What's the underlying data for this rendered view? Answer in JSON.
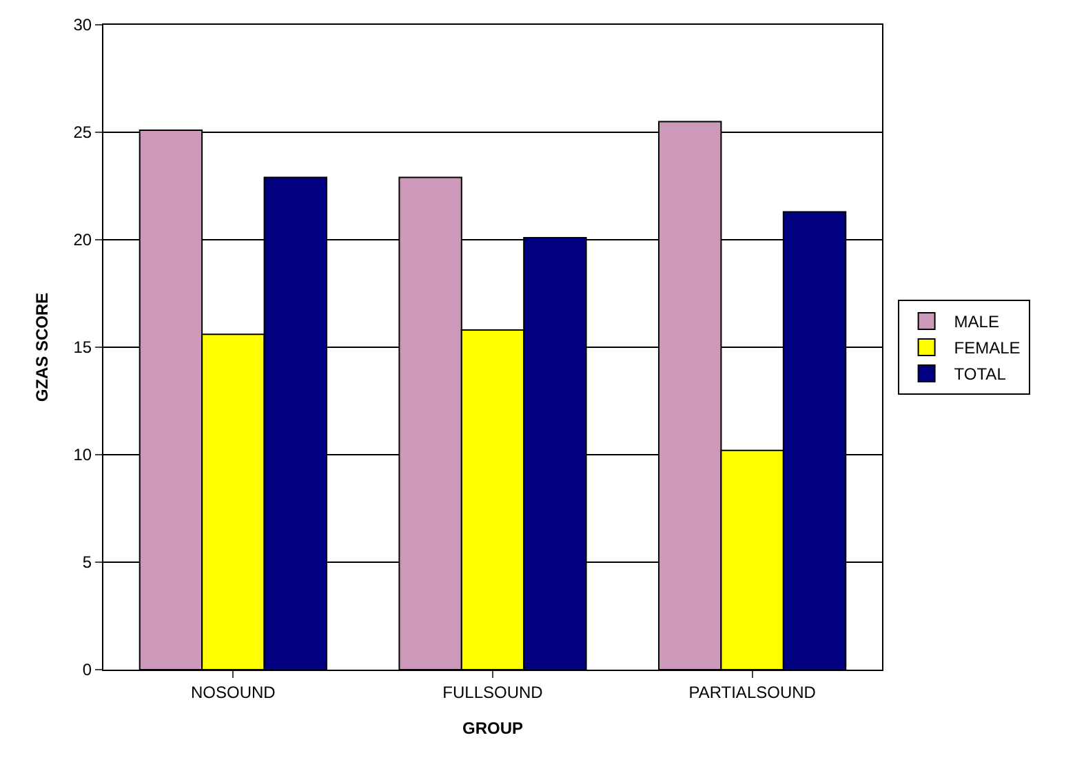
{
  "chart_data": {
    "type": "bar",
    "xlabel": "GROUP",
    "ylabel": "GZAS SCORE",
    "categories": [
      "NOSOUND",
      "FULLSOUND",
      "PARTIALSOUND"
    ],
    "series": [
      {
        "name": "MALE",
        "color": "#cc99bb",
        "values": [
          25.1,
          22.9,
          25.5
        ]
      },
      {
        "name": "FEMALE",
        "color": "#ffff00",
        "values": [
          15.6,
          15.8,
          10.2
        ]
      },
      {
        "name": "TOTAL",
        "color": "#000080",
        "values": [
          22.9,
          20.1,
          21.3
        ]
      }
    ],
    "ylim": [
      0,
      30
    ],
    "yticks": [
      0,
      5,
      10,
      15,
      20,
      25,
      30
    ],
    "grid": "y",
    "legend": "right"
  }
}
